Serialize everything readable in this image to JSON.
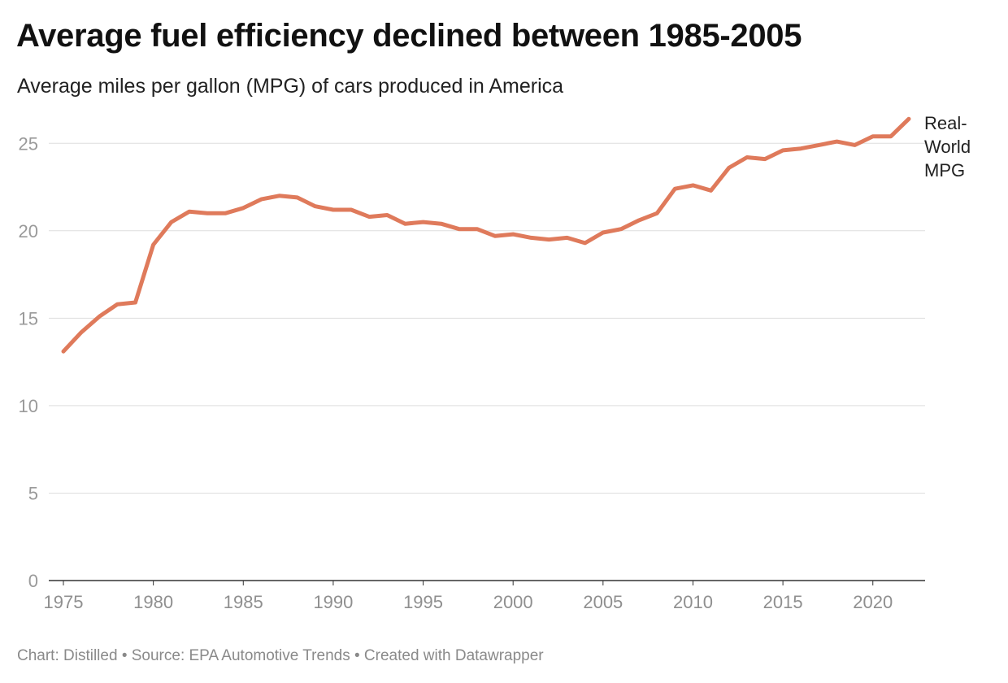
{
  "header": {
    "title": "Average fuel efficiency declined between 1985-2005",
    "subtitle": "Average miles per gallon (MPG) of cars produced in America"
  },
  "footer": {
    "text": "Chart: Distilled • Source: EPA Automotive Trends • Created with Datawrapper"
  },
  "chart_data": {
    "type": "line",
    "title": "Average fuel efficiency declined between 1985-2005",
    "subtitle": "Average miles per gallon (MPG) of cars produced in America",
    "xlabel": "",
    "ylabel": "",
    "xlim": [
      1975,
      2022
    ],
    "ylim": [
      0,
      26.5
    ],
    "x_ticks": [
      1975,
      1980,
      1985,
      1990,
      1995,
      2000,
      2005,
      2010,
      2015,
      2020
    ],
    "x_tick_labels": [
      "1975",
      "1980",
      "1985",
      "1990",
      "1995",
      "2000",
      "2005",
      "2010",
      "2015",
      "2020"
    ],
    "y_ticks": [
      0,
      5,
      10,
      15,
      20,
      25
    ],
    "y_tick_labels": [
      "0",
      "5",
      "10",
      "15",
      "20",
      "25"
    ],
    "grid": "horizontal",
    "legend": "direct label at line end (right)",
    "series": [
      {
        "name": "Real-World MPG",
        "label_lines": [
          "Real-",
          "World",
          "MPG"
        ],
        "color": "#df7a5b",
        "x": [
          1975,
          1976,
          1977,
          1978,
          1979,
          1980,
          1981,
          1982,
          1983,
          1984,
          1985,
          1986,
          1987,
          1988,
          1989,
          1990,
          1991,
          1992,
          1993,
          1994,
          1995,
          1996,
          1997,
          1998,
          1999,
          2000,
          2001,
          2002,
          2003,
          2004,
          2005,
          2006,
          2007,
          2008,
          2009,
          2010,
          2011,
          2012,
          2013,
          2014,
          2015,
          2016,
          2017,
          2018,
          2019,
          2020,
          2021,
          2022
        ],
        "values": [
          13.1,
          14.2,
          15.1,
          15.8,
          15.9,
          19.2,
          20.5,
          21.1,
          21.0,
          21.0,
          21.3,
          21.8,
          22.0,
          21.9,
          21.4,
          21.2,
          21.2,
          20.8,
          20.9,
          20.4,
          20.5,
          20.4,
          20.1,
          20.1,
          19.7,
          19.8,
          19.6,
          19.5,
          19.6,
          19.3,
          19.9,
          20.1,
          20.6,
          21.0,
          22.4,
          22.6,
          22.3,
          23.6,
          24.2,
          24.1,
          24.6,
          24.7,
          24.9,
          25.1,
          24.9,
          25.4,
          25.4,
          26.4
        ]
      }
    ]
  }
}
